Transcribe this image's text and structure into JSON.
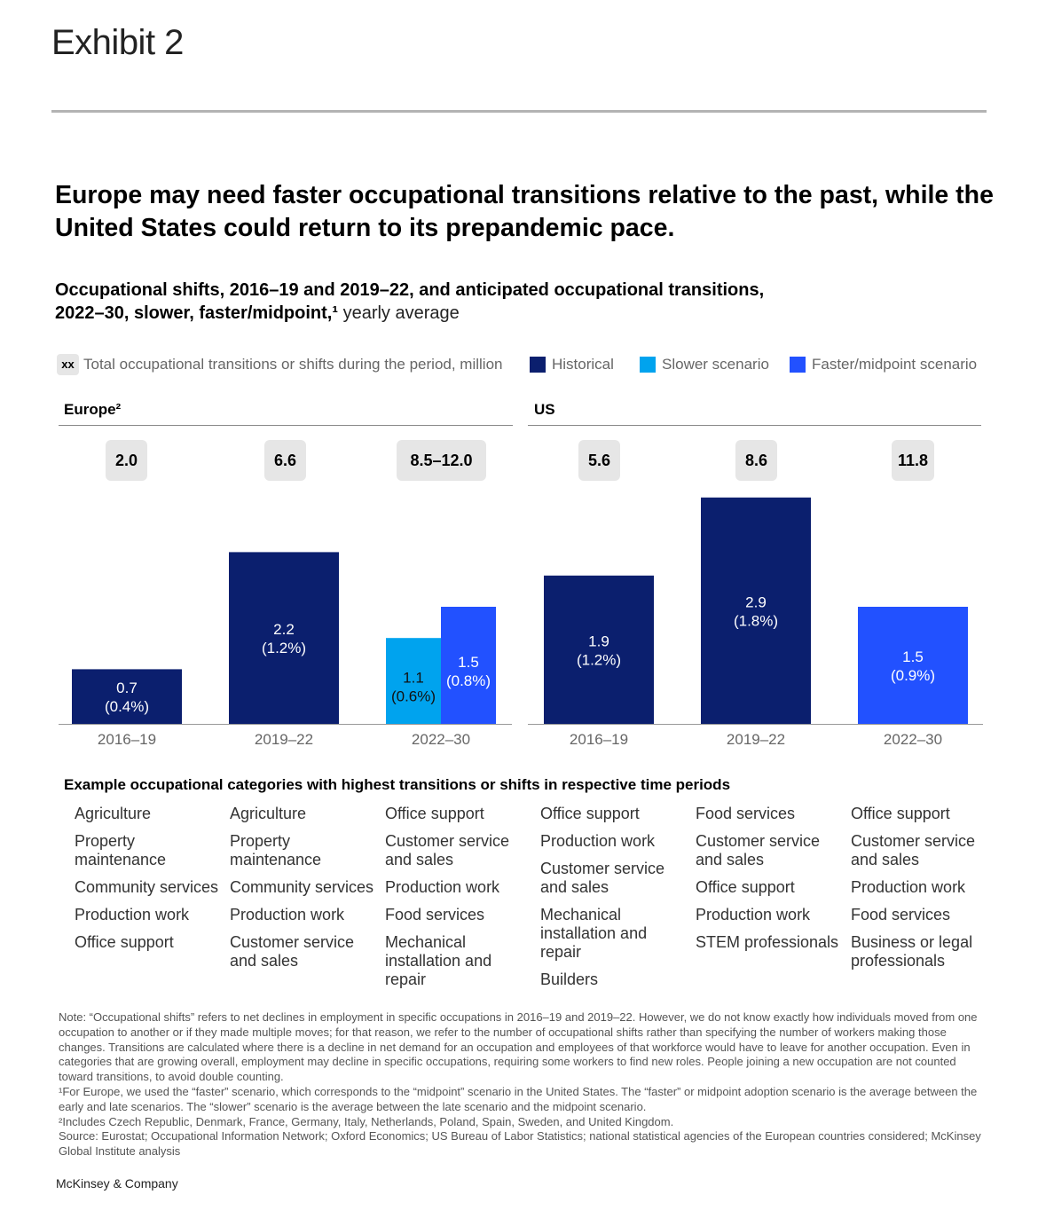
{
  "exhibit_label": "Exhibit 2",
  "headline": "Europe may need faster occupational transitions relative to the past, while the United States could return to its prepandemic pace.",
  "subtitle": {
    "bold": "Occupational shifts, 2016–19 and 2019–22, and anticipated occupational transitions, 2022–30, slower, faster/midpoint,¹",
    "light": " yearly average"
  },
  "legend": {
    "box_text": "xx",
    "box_label": "Total occupational transitions or shifts during the period, million",
    "items": [
      {
        "label": "Historical",
        "color": "#0b1f6e"
      },
      {
        "label": "Slower scenario",
        "color": "#00a3ee"
      },
      {
        "label": "Faster/midpoint scenario",
        "color": "#2251ff"
      }
    ]
  },
  "chart_data": [
    {
      "type": "bar",
      "title": "Europe²",
      "categories": [
        "2016–19",
        "2019–22",
        "2022–30"
      ],
      "totals": [
        "2.0",
        "6.6",
        "8.5–12.0"
      ],
      "bars": [
        {
          "category": "2016–19",
          "series": "Historical",
          "value": 0.7,
          "label": "0.7",
          "share": "(0.4%)"
        },
        {
          "category": "2019–22",
          "series": "Historical",
          "value": 2.2,
          "label": "2.2",
          "share": "(1.2%)"
        },
        {
          "category": "2022–30",
          "series": "Slower scenario",
          "value": 1.1,
          "label": "1.1",
          "share": "(0.6%)"
        },
        {
          "category": "2022–30",
          "series": "Faster/midpoint scenario",
          "value": 1.5,
          "label": "1.5",
          "share": "(0.8%)"
        }
      ],
      "ylim": [
        0,
        3.0
      ]
    },
    {
      "type": "bar",
      "title": "US",
      "categories": [
        "2016–19",
        "2019–22",
        "2022–30"
      ],
      "totals": [
        "5.6",
        "8.6",
        "11.8"
      ],
      "bars": [
        {
          "category": "2016–19",
          "series": "Historical",
          "value": 1.9,
          "label": "1.9",
          "share": "(1.2%)"
        },
        {
          "category": "2019–22",
          "series": "Historical",
          "value": 2.9,
          "label": "2.9",
          "share": "(1.8%)"
        },
        {
          "category": "2022–30",
          "series": "Faster/midpoint scenario",
          "value": 1.5,
          "label": "1.5",
          "share": "(0.9%)"
        }
      ],
      "ylim": [
        0,
        3.0
      ]
    }
  ],
  "categories_heading": "Example occupational categories with highest transitions or shifts in respective time periods",
  "category_columns": [
    [
      "Agriculture",
      "Property maintenance",
      "Community services",
      "Production work",
      "Office support"
    ],
    [
      "Agriculture",
      "Property maintenance",
      "Community services",
      "Production work",
      "Customer service and sales"
    ],
    [
      "Office support",
      "Customer service and sales",
      "Production work",
      "Food services",
      "Mechanical installation and repair"
    ],
    [
      "Office support",
      "Production work",
      "Customer service and sales",
      "Mechanical installation and repair",
      "Builders"
    ],
    [
      "Food services",
      "Customer service and sales",
      "Office support",
      "Production work",
      "STEM professionals"
    ],
    [
      "Office support",
      "Customer service and sales",
      "Production work",
      "Food services",
      "Business or legal professionals"
    ]
  ],
  "notes": [
    "Note: “Occupational shifts” refers to net declines in employment in specific occupations in 2016–19 and 2019–22. However, we do not know exactly how individuals moved from one occupation to another or if they made multiple moves; for that reason, we refer to the number of occupational shifts rather than specifying the number of workers making those changes. Transitions are calculated where there is a decline in net demand for an occupation and employees of that workforce would have to leave for another occupation. Even in categories that are growing overall, employment may decline in specific occupations, requiring some workers to find new roles. People joining a new occupation are not counted toward transitions, to avoid double counting.",
    "¹For Europe, we used the “faster” scenario, which corresponds to the “midpoint” scenario in the United States. The “faster” or midpoint adoption scenario is the average between the early and late scenarios. The “slower” scenario is the average between the late scenario and the midpoint scenario.",
    "²Includes Czech Republic, Denmark, France, Germany, Italy, Netherlands, Poland, Spain, Sweden, and United Kingdom.",
    "Source: Eurostat; Occupational Information Network; Oxford Economics; US Bureau of Labor Statistics; national statistical agencies of the European countries considered; McKinsey Global Institute analysis"
  ],
  "brand": "McKinsey & Company"
}
